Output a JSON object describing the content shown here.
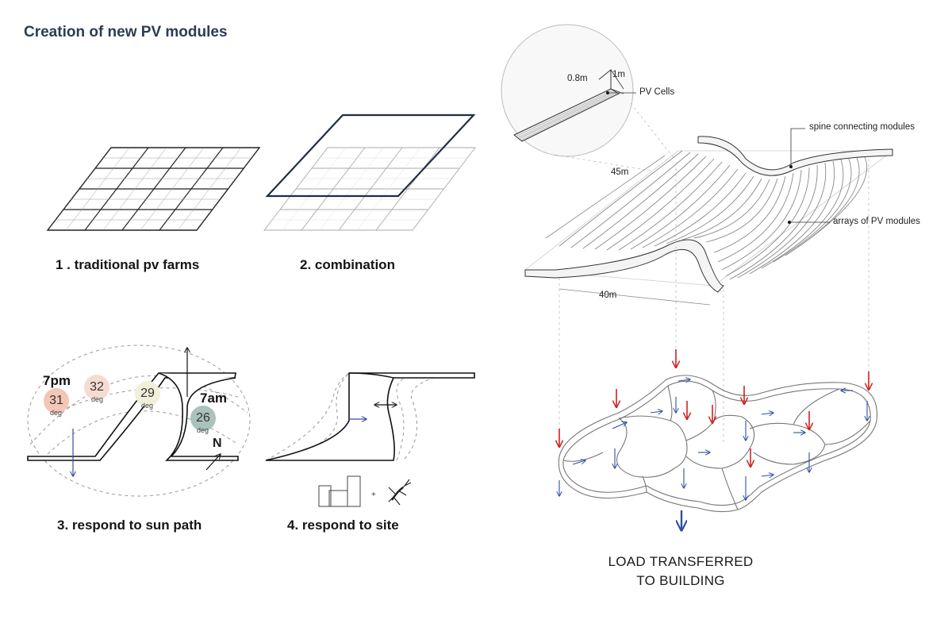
{
  "title": "Creation of new PV modules",
  "steps": [
    {
      "label": "1 . traditional pv farms"
    },
    {
      "label": "2. combination"
    },
    {
      "label": "3. respond to sun path"
    },
    {
      "label": "4. respond to site"
    }
  ],
  "sun_path": {
    "times": [
      "7pm",
      "7am"
    ],
    "angles": [
      {
        "value": "31",
        "unit": "deg",
        "color": "#f3c6b6"
      },
      {
        "value": "32",
        "unit": "deg",
        "color": "#f6dcd0"
      },
      {
        "value": "29",
        "unit": "deg",
        "color": "#f1efd9"
      },
      {
        "value": "26",
        "unit": "deg",
        "color": "#a9c2bc"
      }
    ],
    "north": "N"
  },
  "module_detail": {
    "width": "0.8m",
    "height": "1m",
    "cells": "PV Cells"
  },
  "annotations": {
    "spine": "spine connecting modules",
    "arrays": "arrays of PV modules",
    "length": "45m",
    "width": "40m"
  },
  "load": {
    "caption_line1": "LOAD TRANSFERRED",
    "caption_line2": "TO BUILDING"
  },
  "colors": {
    "title": "#2b3c55",
    "load_arrow": "#d42020",
    "reaction_arrow": "#2f4fa0",
    "frame": "#1f2d45"
  }
}
